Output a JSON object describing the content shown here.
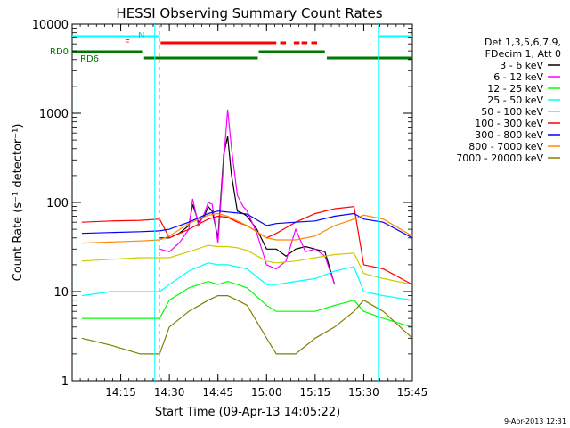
{
  "chart_data": {
    "type": "line",
    "title": "HESSI Observing Summary Count Rates",
    "xlabel": "Start Time (09-Apr-13 14:05:22)",
    "ylabel": "Count Rate (s⁻¹ detector⁻¹)",
    "yscale": "log",
    "ylim": [
      1,
      10000
    ],
    "xlim_minutes": [
      14.0,
      15.75
    ],
    "x_unit": "hours (14.0 = 14:00 UT)",
    "x_ticks": [
      {
        "value": 14.25,
        "label": "14:15"
      },
      {
        "value": 14.5,
        "label": "14:30"
      },
      {
        "value": 14.75,
        "label": "14:45"
      },
      {
        "value": 15.0,
        "label": "15:00"
      },
      {
        "value": 15.25,
        "label": "15:15"
      },
      {
        "value": 15.5,
        "label": "15:30"
      },
      {
        "value": 15.75,
        "label": "15:45"
      }
    ],
    "y_ticks": [
      {
        "value": 1,
        "label": "1"
      },
      {
        "value": 10,
        "label": "10"
      },
      {
        "value": 100,
        "label": "100"
      },
      {
        "value": 1000,
        "label": "1000"
      },
      {
        "value": 10000,
        "label": "10000"
      }
    ],
    "legend": {
      "placement": "right",
      "header": [
        "Det 1,3,5,6,7,9,",
        "FDecim 1, Att 0"
      ],
      "entries": [
        {
          "name": "3 - 6 keV",
          "color": "#000000"
        },
        {
          "name": "6 - 12 keV",
          "color": "#ff00ff"
        },
        {
          "name": "12 - 25 keV",
          "color": "#00ff00"
        },
        {
          "name": "25 - 50 keV",
          "color": "#00ffff"
        },
        {
          "name": "50 - 100 keV",
          "color": "#cccc00"
        },
        {
          "name": "100 - 300 keV",
          "color": "#ff0000"
        },
        {
          "name": "300 - 800 keV",
          "color": "#0000ff"
        },
        {
          "name": "800 - 7000 keV",
          "color": "#ff8800"
        },
        {
          "name": "7000 - 20000 keV",
          "color": "#808000"
        }
      ]
    },
    "flag_labels": {
      "n": "N",
      "f": "F",
      "rd0": "RD0",
      "rd6": "RD6"
    },
    "night_boundaries": [
      14.025,
      14.425,
      15.575,
      15.975
    ],
    "saa_dashed_boundaries": [
      14.45,
      15.975
    ],
    "series": [
      {
        "name": "3 - 6 keV",
        "color": "#000000",
        "x": [
          14.45,
          14.5,
          14.55,
          14.6,
          14.62,
          14.65,
          14.68,
          14.7,
          14.72,
          14.75,
          14.78,
          14.8,
          14.82,
          14.85,
          14.88,
          14.9,
          14.95,
          15.0,
          15.05,
          15.1,
          15.15,
          15.2,
          15.25,
          15.3,
          15.35
        ],
        "y": [
          40,
          40,
          45,
          55,
          95,
          60,
          70,
          90,
          80,
          40,
          350,
          550,
          200,
          80,
          75,
          70,
          50,
          30,
          30,
          25,
          30,
          32,
          30,
          28,
          12
        ]
      },
      {
        "name": "6 - 12 keV",
        "color": "#ff00ff",
        "x": [
          14.45,
          14.5,
          14.55,
          14.6,
          14.62,
          14.65,
          14.68,
          14.7,
          14.72,
          14.75,
          14.78,
          14.8,
          14.82,
          14.85,
          14.88,
          14.9,
          14.95,
          15.0,
          15.05,
          15.1,
          15.15,
          15.2,
          15.25,
          15.3,
          15.35
        ],
        "y": [
          30,
          28,
          35,
          50,
          110,
          55,
          75,
          100,
          95,
          35,
          300,
          1100,
          400,
          120,
          90,
          80,
          45,
          20,
          18,
          22,
          50,
          28,
          30,
          25,
          12
        ]
      },
      {
        "name": "12 - 25 keV",
        "color": "#00ff00",
        "x": [
          14.05,
          14.2,
          14.35,
          14.45,
          14.5,
          14.6,
          14.7,
          14.75,
          14.8,
          14.85,
          14.9,
          15.0,
          15.05,
          15.15,
          15.25,
          15.35,
          15.45,
          15.5,
          15.6,
          15.75
        ],
        "y": [
          5,
          5,
          5,
          5,
          8,
          11,
          13,
          12,
          13,
          12,
          11,
          7,
          6,
          6,
          6,
          7,
          8,
          6,
          5,
          4
        ]
      },
      {
        "name": "25 - 50 keV",
        "color": "#00ffff",
        "x": [
          14.05,
          14.2,
          14.35,
          14.45,
          14.5,
          14.6,
          14.7,
          14.75,
          14.8,
          14.85,
          14.9,
          15.0,
          15.05,
          15.15,
          15.25,
          15.35,
          15.45,
          15.5,
          15.6,
          15.75
        ],
        "y": [
          9,
          10,
          10,
          10,
          12,
          17,
          21,
          20,
          20,
          19,
          18,
          12,
          12,
          13,
          14,
          17,
          19,
          10,
          9,
          8
        ]
      },
      {
        "name": "50 - 100 keV",
        "color": "#cccc00",
        "x": [
          14.05,
          14.2,
          14.35,
          14.45,
          14.5,
          14.6,
          14.7,
          14.75,
          14.8,
          14.85,
          14.9,
          15.0,
          15.05,
          15.15,
          15.25,
          15.35,
          15.45,
          15.5,
          15.6,
          15.75
        ],
        "y": [
          22,
          23,
          24,
          24,
          24,
          28,
          33,
          32,
          32,
          31,
          29,
          22,
          21,
          22,
          24,
          26,
          27,
          16,
          14,
          12
        ]
      },
      {
        "name": "100 - 300 keV",
        "color": "#ff0000",
        "x": [
          14.05,
          14.2,
          14.35,
          14.45,
          14.5,
          14.6,
          14.7,
          14.75,
          14.8,
          14.85,
          14.9,
          15.0,
          15.05,
          15.15,
          15.25,
          15.35,
          15.45,
          15.5,
          15.6,
          15.75
        ],
        "y": [
          60,
          62,
          63,
          65,
          40,
          50,
          65,
          70,
          68,
          60,
          55,
          40,
          45,
          60,
          75,
          85,
          90,
          20,
          18,
          12
        ]
      },
      {
        "name": "300 - 800 keV",
        "color": "#0000ff",
        "x": [
          14.05,
          14.2,
          14.35,
          14.45,
          14.5,
          14.6,
          14.7,
          14.75,
          14.8,
          14.85,
          14.9,
          15.0,
          15.05,
          15.15,
          15.25,
          15.35,
          15.45,
          15.5,
          15.6,
          15.75
        ],
        "y": [
          45,
          46,
          47,
          48,
          50,
          60,
          75,
          80,
          78,
          76,
          74,
          55,
          58,
          60,
          62,
          70,
          75,
          65,
          60,
          40
        ]
      },
      {
        "name": "800 - 7000 keV",
        "color": "#ff8800",
        "x": [
          14.05,
          14.2,
          14.35,
          14.45,
          14.5,
          14.6,
          14.7,
          14.75,
          14.8,
          14.85,
          14.9,
          15.0,
          15.05,
          15.15,
          15.25,
          15.35,
          15.45,
          15.5,
          15.6,
          15.75
        ],
        "y": [
          35,
          36,
          37,
          38,
          42,
          58,
          72,
          75,
          70,
          62,
          55,
          40,
          38,
          38,
          42,
          55,
          65,
          72,
          65,
          42
        ]
      },
      {
        "name": "7000 - 20000 keV",
        "color": "#808000",
        "x": [
          14.05,
          14.2,
          14.35,
          14.45,
          14.5,
          14.6,
          14.7,
          14.75,
          14.8,
          14.85,
          14.9,
          15.0,
          15.05,
          15.15,
          15.25,
          15.35,
          15.45,
          15.5,
          15.6,
          15.75
        ],
        "y": [
          3,
          2.5,
          2,
          2,
          4,
          6,
          8,
          9,
          9,
          8,
          7,
          3,
          2,
          2,
          3,
          4,
          6,
          8,
          6,
          3
        ]
      }
    ]
  },
  "footer": {
    "date_stamp": "9-Apr-2013 12:31"
  }
}
